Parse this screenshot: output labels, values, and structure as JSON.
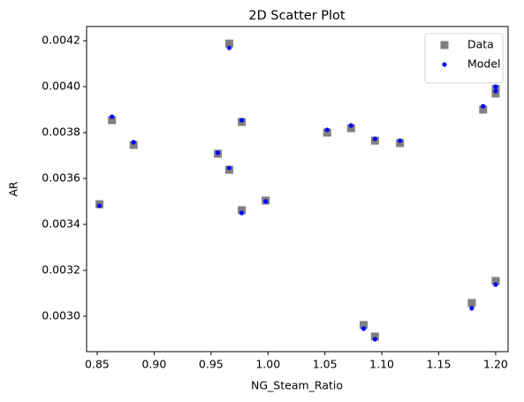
{
  "chart_data": {
    "type": "scatter",
    "title": "2D Scatter Plot",
    "x_label": "NG_Steam_Ratio",
    "y_label": "AR",
    "x": [
      0.852,
      0.863,
      0.882,
      0.956,
      0.966,
      0.966,
      0.977,
      0.977,
      0.998,
      1.052,
      1.073,
      1.084,
      1.094,
      1.094,
      1.116,
      1.179,
      1.189,
      1.2,
      1.2,
      1.2
    ],
    "series": [
      {
        "name": "Data",
        "color": "#808080",
        "marker": "square",
        "values": [
          0.003488,
          0.003854,
          0.003746,
          0.003708,
          0.004188,
          0.003638,
          0.003846,
          0.003462,
          0.003504,
          0.0038,
          0.003819,
          0.002962,
          0.003765,
          0.002912,
          0.003754,
          0.003058,
          0.0039,
          0.00397,
          0.00399,
          0.003154
        ]
      },
      {
        "name": "Model",
        "color": "#0000ff",
        "marker": "circle",
        "values": [
          0.003481,
          0.003869,
          0.003758,
          0.003712,
          0.004169,
          0.003646,
          0.003854,
          0.00345,
          0.0035,
          0.003812,
          0.003831,
          0.002946,
          0.003773,
          0.0029,
          0.003765,
          0.003035,
          0.003915,
          0.004,
          0.003981,
          0.003138
        ]
      }
    ],
    "xlim": [
      0.8407,
      1.2109
    ],
    "ylim": [
      0.002846,
      0.004262
    ],
    "xticks": [
      {
        "value": 0.85,
        "label": "0.85"
      },
      {
        "value": 0.9,
        "label": "0.90"
      },
      {
        "value": 0.95,
        "label": "0.95"
      },
      {
        "value": 1.0,
        "label": "1.00"
      },
      {
        "value": 1.05,
        "label": "1.05"
      },
      {
        "value": 1.1,
        "label": "1.10"
      },
      {
        "value": 1.15,
        "label": "1.15"
      },
      {
        "value": 1.2,
        "label": "1.20"
      }
    ],
    "yticks": [
      {
        "value": 0.003,
        "label": "0.0030"
      },
      {
        "value": 0.0032,
        "label": "0.0032"
      },
      {
        "value": 0.0034,
        "label": "0.0034"
      },
      {
        "value": 0.0036,
        "label": "0.0036"
      },
      {
        "value": 0.0038,
        "label": "0.0038"
      },
      {
        "value": 0.004,
        "label": "0.0040"
      },
      {
        "value": 0.0042,
        "label": "0.0042"
      }
    ],
    "grid": false,
    "legend": "upper right"
  }
}
